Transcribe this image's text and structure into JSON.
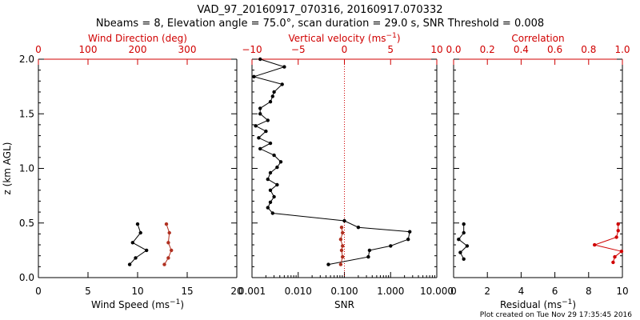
{
  "title_line1": "VAD_97_20160917_070316, 20160917.070332",
  "title_line2": "Nbeams = 8, Elevation angle = 75.0°, scan duration = 29.0 s, SNR Threshold = 0.008",
  "footer": "Plot created on Tue Nov 29 17:35:45 2016",
  "colors": {
    "black": "#000000",
    "red": "#d00000",
    "dark_red": "#b03020"
  },
  "chart_data": [
    {
      "type": "line",
      "name_key": "wind",
      "xlabel": "Wind Speed (ms",
      "xlabel_sup": "−1",
      "xlabel_end": ")",
      "xlim": [
        0,
        20
      ],
      "xticks": [
        0,
        5,
        10,
        15,
        20
      ],
      "top_label": "Wind Direction (deg)",
      "top_lim": [
        0,
        400
      ],
      "top_ticks": [
        0,
        100,
        200,
        300
      ],
      "ylabel": "z (km AGL)",
      "ylim": [
        0,
        2.0
      ],
      "yticks": [
        0.0,
        0.5,
        1.0,
        1.5,
        2.0
      ],
      "ytick_labels": [
        "0.0",
        "0.5",
        "1.0",
        "1.5",
        "2.0"
      ],
      "series": [
        {
          "axis": "bottom",
          "color": "#000000",
          "x": [
            10.0,
            10.3,
            9.5,
            10.9,
            9.8,
            9.2
          ],
          "y": [
            0.49,
            0.41,
            0.32,
            0.25,
            0.18,
            0.12
          ]
        },
        {
          "axis": "top",
          "color": "#b03020",
          "x": [
            258,
            264,
            262,
            268,
            262,
            254
          ],
          "y": [
            0.49,
            0.41,
            0.32,
            0.25,
            0.18,
            0.12
          ]
        }
      ]
    },
    {
      "type": "line",
      "name_key": "snr",
      "xlabel": "SNR",
      "xscale": "log",
      "xlim": [
        0.001,
        10.0
      ],
      "xticks": [
        0.001,
        0.01,
        0.1,
        1.0,
        10.0
      ],
      "xtick_labels": [
        "0.001",
        "0.010",
        "0.100",
        "1.000",
        "10.000"
      ],
      "top_label": "Vertical velocity (ms",
      "top_label_sup": "−1",
      "top_label_end": ")",
      "top_lim": [
        -10,
        10
      ],
      "top_ticks": [
        -10,
        -5,
        0,
        5,
        10
      ],
      "top_tick_labels": [
        "−10",
        "−5",
        "0",
        "5",
        "10"
      ],
      "ylim": [
        0,
        2.0
      ],
      "series": [
        {
          "axis": "bottom",
          "color": "#000000",
          "x": [
            0.0015,
            0.005,
            0.0011,
            0.0045,
            0.003,
            0.0028,
            0.0025,
            0.0015,
            0.0015,
            0.0022,
            0.0012,
            0.002,
            0.0014,
            0.0025,
            0.0015,
            0.003,
            0.0042,
            0.0035,
            0.0025,
            0.0022,
            0.0035,
            0.0025,
            0.003,
            0.0025,
            0.0022,
            0.0028,
            0.1,
            0.2,
            2.6,
            2.4,
            1.0,
            0.35,
            0.33,
            0.045
          ],
          "y": [
            2.0,
            1.93,
            1.84,
            1.77,
            1.7,
            1.66,
            1.61,
            1.55,
            1.5,
            1.44,
            1.39,
            1.34,
            1.28,
            1.23,
            1.18,
            1.12,
            1.06,
            1.01,
            0.96,
            0.9,
            0.85,
            0.8,
            0.74,
            0.69,
            0.64,
            0.59,
            0.52,
            0.46,
            0.42,
            0.35,
            0.29,
            0.25,
            0.19,
            0.12
          ]
        },
        {
          "axis": "top",
          "color": "#b03020",
          "x": [
            -0.3,
            -0.2,
            -0.4,
            -0.2,
            -0.3,
            -0.2,
            -0.4
          ],
          "y": [
            0.46,
            0.41,
            0.35,
            0.29,
            0.25,
            0.19,
            0.12
          ]
        }
      ],
      "reference_line": {
        "axis": "top",
        "x": 0,
        "color": "#d00000",
        "style": "dotted"
      }
    },
    {
      "type": "line",
      "name_key": "resid",
      "xlabel": "Residual (ms",
      "xlabel_sup": "−1",
      "xlabel_end": ")",
      "xlim": [
        0,
        10
      ],
      "xticks": [
        0,
        2,
        4,
        6,
        8,
        10
      ],
      "top_label": "Correlation",
      "top_lim": [
        0.0,
        1.0
      ],
      "top_ticks": [
        0.0,
        0.2,
        0.4,
        0.6,
        0.8,
        1.0
      ],
      "top_tick_labels": [
        "0.0",
        "0.2",
        "0.4",
        "0.6",
        "0.8",
        "1.0"
      ],
      "ylim": [
        0,
        2.0
      ],
      "series": [
        {
          "axis": "bottom",
          "color": "#000000",
          "x": [
            0.6,
            0.6,
            0.3,
            0.8,
            0.4,
            0.6
          ],
          "y": [
            0.49,
            0.41,
            0.35,
            0.29,
            0.23,
            0.17
          ]
        },
        {
          "axis": "top",
          "color": "#d00000",
          "x": [
            0.975,
            0.975,
            0.965,
            0.835,
            0.995,
            0.955,
            0.945
          ],
          "y": [
            0.49,
            0.43,
            0.37,
            0.3,
            0.24,
            0.19,
            0.14
          ]
        }
      ]
    }
  ]
}
